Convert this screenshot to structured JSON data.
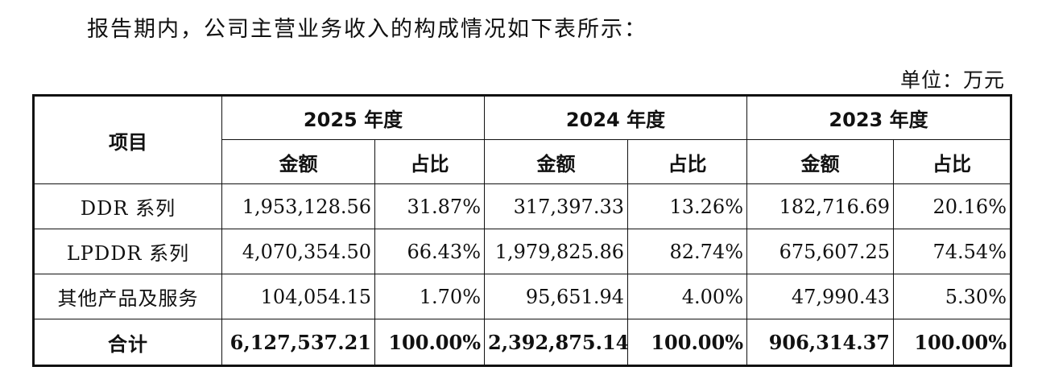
{
  "intro_text": "报告期内，公司主营业务收入的构成情况如下表所示：",
  "unit_text": "单位：万元",
  "table": {
    "item_header": "项目",
    "years": [
      "2025 年度",
      "2024 年度",
      "2023 年度"
    ],
    "sub_headers": {
      "amount": "金额",
      "ratio": "占比"
    },
    "rows": [
      {
        "label": "DDR 系列",
        "cells": [
          "1,953,128.56",
          "31.87%",
          "317,397.33",
          "13.26%",
          "182,716.69",
          "20.16%"
        ]
      },
      {
        "label": "LPDDR 系列",
        "cells": [
          "4,070,354.50",
          "66.43%",
          "1,979,825.86",
          "82.74%",
          "675,607.25",
          "74.54%"
        ]
      },
      {
        "label": "其他产品及服务",
        "cells": [
          "104,054.15",
          "1.70%",
          "95,651.94",
          "4.00%",
          "47,990.43",
          "5.30%"
        ]
      }
    ],
    "total": {
      "label": "合计",
      "cells": [
        "6,127,537.21",
        "100.00%",
        "2,392,875.14",
        "100.00%",
        "906,314.37",
        "100.00%"
      ]
    }
  }
}
